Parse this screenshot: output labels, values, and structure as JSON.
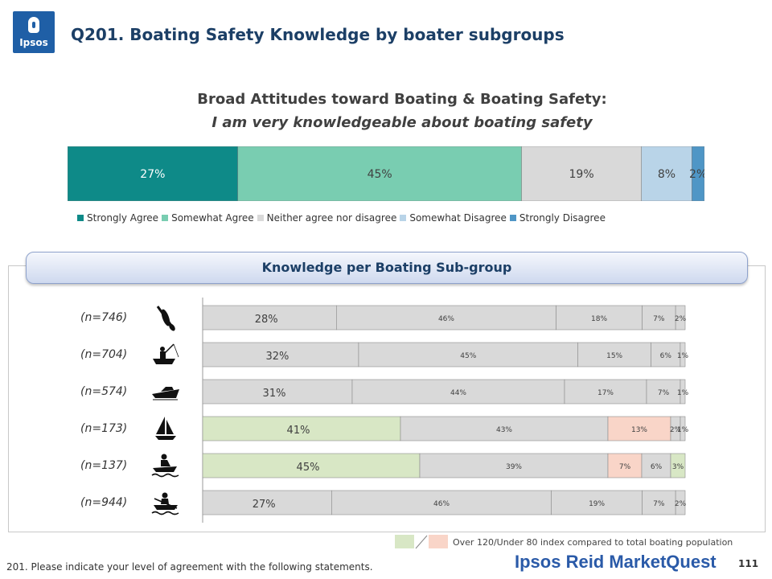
{
  "header": {
    "logo_text": "Ipsos",
    "title": "Q201. Boating Safety Knowledge by boater subgroups"
  },
  "chart_data": [
    {
      "type": "bar",
      "orientation": "horizontal-stacked-100",
      "title": "Broad Attitudes toward Boating & Boating Safety:",
      "subtitle": "I am very knowledgeable about boating safety",
      "categories": [
        ""
      ],
      "series": [
        {
          "name": "Strongly Agree",
          "values": [
            27
          ],
          "labels": [
            "27%"
          ],
          "color": "#0e8a88"
        },
        {
          "name": "Somewhat Agree",
          "values": [
            45
          ],
          "labels": [
            "45%"
          ],
          "color": "#79cdb1"
        },
        {
          "name": "Neither agree nor disagree",
          "values": [
            19
          ],
          "labels": [
            "19%"
          ],
          "color": "#d9d9d9"
        },
        {
          "name": "Somewhat Disagree",
          "values": [
            8
          ],
          "labels": [
            "8%"
          ],
          "color": "#b9d4e8"
        },
        {
          "name": "Strongly Disagree",
          "values": [
            2
          ],
          "labels": [
            "2%"
          ],
          "color": "#4f96c6"
        }
      ],
      "legend": "bottom"
    },
    {
      "type": "bar",
      "orientation": "horizontal-stacked-100",
      "title": "Knowledge per Boating Sub-group",
      "categories": [
        "(n=746)",
        "(n=704)",
        "(n=574)",
        "(n=173)",
        "(n=137)",
        "(n=944)"
      ],
      "icons": [
        "paddle-icon",
        "fishing-boat-icon",
        "motorboat-icon",
        "sailboat-icon",
        "personal-watercraft-icon",
        "rowboat-icon"
      ],
      "series": [
        {
          "name": "Strongly Agree",
          "values": [
            28,
            32,
            31,
            41,
            45,
            27
          ],
          "labels": [
            "28%",
            "32%",
            "31%",
            "41%",
            "45%",
            "27%"
          ]
        },
        {
          "name": "Somewhat Agree",
          "values": [
            46,
            45,
            44,
            43,
            39,
            46
          ],
          "labels": [
            "46%",
            "45%",
            "44%",
            "43%",
            "39%",
            "46%"
          ]
        },
        {
          "name": "Neither agree nor disagree",
          "values": [
            18,
            15,
            17,
            13,
            7,
            19
          ],
          "labels": [
            "18%",
            "15%",
            "17%",
            "13%",
            "7%",
            "19%"
          ]
        },
        {
          "name": "Somewhat Disagree",
          "values": [
            7,
            6,
            7,
            2,
            6,
            7
          ],
          "labels": [
            "7%",
            "6%",
            "7%",
            "2%",
            "6%",
            "7%"
          ]
        },
        {
          "name": "Strongly Disagree",
          "values": [
            2,
            1,
            1,
            1,
            3,
            2
          ],
          "labels": [
            "2%",
            "1%",
            "1%",
            "1%",
            "3%",
            "2%"
          ]
        }
      ],
      "highlight": {
        "over_color": "#d8e7c5",
        "under_color": "#f9d5c8",
        "default_color": "#d9d9d9",
        "cells": [
          [
            "n",
            "n",
            "n",
            "n",
            "n"
          ],
          [
            "n",
            "n",
            "n",
            "n",
            "n"
          ],
          [
            "n",
            "n",
            "n",
            "n",
            "n"
          ],
          [
            "over",
            "n",
            "under",
            "n",
            "n"
          ],
          [
            "over",
            "n",
            "under",
            "n",
            "over"
          ],
          [
            "n",
            "n",
            "n",
            "n",
            "n"
          ]
        ]
      }
    }
  ],
  "legend2": {
    "text": "Over 120/Under 80 index compared to total boating population"
  },
  "footer": {
    "footnote": "201. Please indicate your level of agreement with the following statements.",
    "brand": "Ipsos Reid MarketQuest",
    "page_number": "111"
  }
}
